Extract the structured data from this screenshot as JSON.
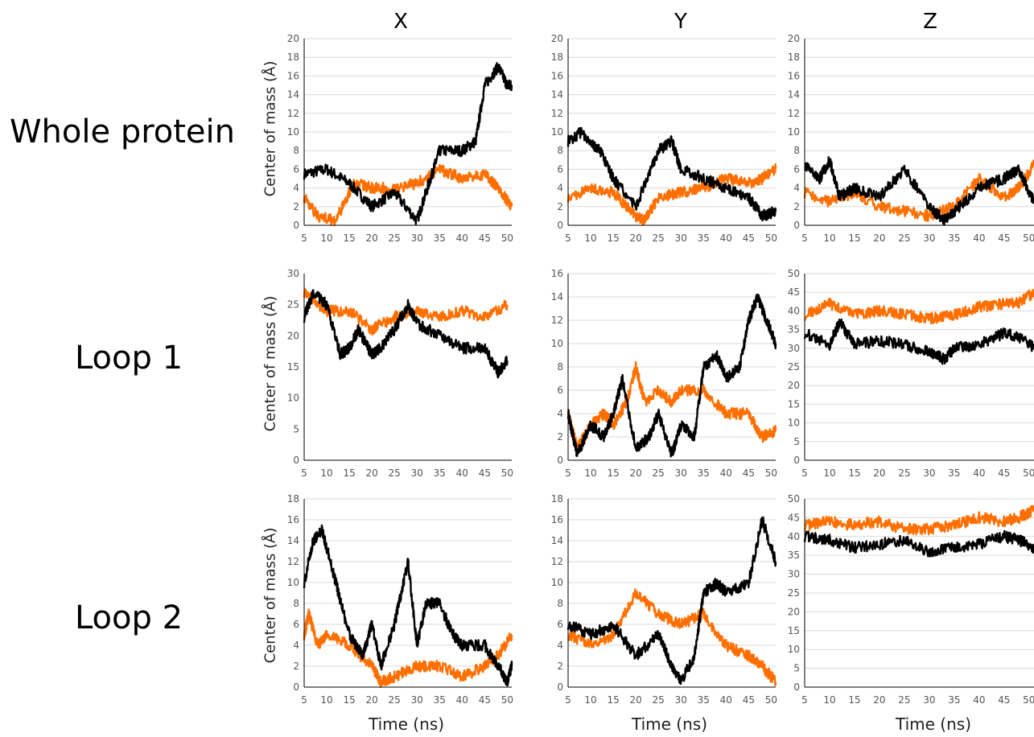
{
  "column_titles": [
    "X",
    "Y",
    "Z"
  ],
  "row_labels": [
    "Whole protein",
    "Loop 1",
    "Loop 2"
  ],
  "ylabel": "Center of mass (Å)",
  "xlabel": "Time (ns)",
  "colors": {
    "black_series": "#000000",
    "orange_series": "#ff6f00",
    "grid": "#d9d9d9",
    "axis": "#000000"
  },
  "chart_data": [
    {
      "type": "line",
      "row": "Whole protein",
      "column": "X",
      "xlim": [
        5,
        51
      ],
      "ylim": [
        0,
        20
      ],
      "xticks": [
        5,
        10,
        15,
        20,
        25,
        30,
        35,
        40,
        45,
        50
      ],
      "yticks": [
        0,
        2,
        4,
        6,
        8,
        10,
        12,
        14,
        16,
        18,
        20
      ],
      "grid": "horizontal",
      "series": [
        {
          "color": "#000000",
          "x": [
            5,
            10,
            15,
            20,
            25,
            30,
            33,
            35,
            40,
            43,
            45,
            48,
            50,
            51
          ],
          "y": [
            5.5,
            6,
            4.5,
            2,
            3.5,
            0.5,
            5,
            8,
            8,
            9,
            15,
            17,
            15,
            15
          ]
        },
        {
          "color": "#ff6f00",
          "x": [
            5,
            8,
            12,
            16,
            20,
            25,
            30,
            35,
            40,
            45,
            48,
            51
          ],
          "y": [
            3,
            1,
            0.5,
            4.5,
            4,
            4,
            4.5,
            6,
            5,
            5.5,
            4,
            2
          ]
        }
      ]
    },
    {
      "type": "line",
      "row": "Whole protein",
      "column": "Y",
      "xlim": [
        5,
        51
      ],
      "ylim": [
        0,
        20
      ],
      "xticks": [
        5,
        10,
        15,
        20,
        25,
        30,
        35,
        40,
        45,
        50
      ],
      "yticks": [
        0,
        2,
        4,
        6,
        8,
        10,
        12,
        14,
        16,
        18,
        20
      ],
      "grid": "horizontal",
      "series": [
        {
          "color": "#000000",
          "x": [
            5,
            8,
            12,
            15,
            20,
            25,
            28,
            30,
            35,
            40,
            45,
            48,
            51
          ],
          "y": [
            9,
            10,
            8,
            5,
            2,
            8,
            9,
            6,
            5,
            4,
            3,
            1,
            1.5
          ]
        },
        {
          "color": "#ff6f00",
          "x": [
            5,
            10,
            15,
            20,
            22,
            25,
            30,
            35,
            40,
            45,
            48,
            51
          ],
          "y": [
            3,
            4,
            3.5,
            1,
            0.5,
            3,
            3.5,
            4,
            5,
            4.5,
            5,
            6
          ]
        }
      ]
    },
    {
      "type": "line",
      "row": "Whole protein",
      "column": "Z",
      "xlim": [
        5,
        51
      ],
      "ylim": [
        0,
        20
      ],
      "xticks": [
        5,
        10,
        15,
        20,
        25,
        30,
        35,
        40,
        45,
        50
      ],
      "yticks": [
        0,
        2,
        4,
        6,
        8,
        10,
        12,
        14,
        16,
        18,
        20
      ],
      "grid": "horizontal",
      "series": [
        {
          "color": "#000000",
          "x": [
            5,
            8,
            10,
            12,
            15,
            20,
            25,
            30,
            33,
            35,
            40,
            45,
            48,
            51
          ],
          "y": [
            6.5,
            5,
            7,
            3,
            4,
            3,
            6,
            2,
            0.5,
            1.5,
            4,
            5,
            6,
            2.5
          ]
        },
        {
          "color": "#ff6f00",
          "x": [
            5,
            10,
            15,
            20,
            25,
            30,
            35,
            40,
            45,
            48,
            51
          ],
          "y": [
            3.5,
            2.5,
            3.5,
            2,
            1.5,
            1,
            2,
            5,
            3,
            4,
            6.5
          ]
        }
      ]
    },
    {
      "type": "line",
      "row": "Loop 1",
      "column": "X",
      "xlim": [
        5,
        51
      ],
      "ylim": [
        0,
        30
      ],
      "xticks": [
        5,
        10,
        15,
        20,
        25,
        30,
        35,
        40,
        45,
        50
      ],
      "yticks": [
        0,
        5,
        10,
        15,
        20,
        25,
        30
      ],
      "grid": "none",
      "series": [
        {
          "color": "#000000",
          "x": [
            5,
            7,
            10,
            13,
            15,
            17,
            20,
            22,
            25,
            28,
            30,
            35,
            40,
            45,
            48,
            50
          ],
          "y": [
            23,
            27,
            25,
            17,
            18,
            21,
            17,
            18,
            21,
            25,
            22,
            20,
            18,
            18,
            14,
            16
          ]
        },
        {
          "color": "#ff6f00",
          "x": [
            5,
            10,
            15,
            20,
            25,
            30,
            35,
            40,
            45,
            50
          ],
          "y": [
            27,
            24,
            24,
            21,
            23,
            24,
            23,
            24,
            23,
            25
          ]
        }
      ]
    },
    {
      "type": "line",
      "row": "Loop 1",
      "column": "Y",
      "xlim": [
        5,
        51
      ],
      "ylim": [
        0,
        16
      ],
      "xticks": [
        5,
        10,
        15,
        20,
        25,
        30,
        35,
        40,
        45,
        50
      ],
      "yticks": [
        0,
        2,
        4,
        6,
        8,
        10,
        12,
        14,
        16
      ],
      "grid": "horizontal",
      "series": [
        {
          "color": "#000000",
          "x": [
            5,
            7,
            10,
            13,
            15,
            17,
            20,
            23,
            25,
            28,
            30,
            33,
            35,
            38,
            40,
            43,
            45,
            47,
            49,
            51
          ],
          "y": [
            4,
            0.5,
            3,
            2,
            4,
            7,
            1,
            2,
            4,
            0.5,
            3,
            2,
            8,
            9,
            7,
            8,
            12,
            14,
            12,
            10
          ]
        },
        {
          "color": "#ff6f00",
          "x": [
            5,
            7,
            10,
            13,
            15,
            18,
            20,
            22,
            25,
            28,
            30,
            35,
            40,
            45,
            48,
            51
          ],
          "y": [
            4,
            1,
            3,
            4,
            3,
            5,
            8,
            5,
            6,
            5,
            6,
            6,
            4,
            4,
            2,
            2.5
          ]
        }
      ]
    },
    {
      "type": "line",
      "row": "Loop 1",
      "column": "Z",
      "xlim": [
        5,
        51
      ],
      "ylim": [
        0,
        50
      ],
      "xticks": [
        5,
        10,
        15,
        20,
        25,
        30,
        35,
        40,
        45,
        50
      ],
      "yticks": [
        0,
        5,
        10,
        15,
        20,
        25,
        30,
        35,
        40,
        45,
        50
      ],
      "grid": "horizontal",
      "series": [
        {
          "color": "#000000",
          "x": [
            5,
            10,
            12,
            15,
            20,
            25,
            30,
            33,
            35,
            40,
            45,
            48,
            51
          ],
          "y": [
            34,
            31,
            37,
            31,
            32,
            31,
            29,
            27,
            30,
            31,
            34,
            33,
            30
          ]
        },
        {
          "color": "#ff6f00",
          "x": [
            5,
            10,
            15,
            20,
            25,
            30,
            35,
            40,
            45,
            48,
            51
          ],
          "y": [
            39,
            42,
            39,
            40,
            39,
            38,
            39,
            41,
            42,
            42,
            45
          ]
        }
      ]
    },
    {
      "type": "line",
      "row": "Loop 2",
      "column": "X",
      "xlim": [
        5,
        51
      ],
      "ylim": [
        0,
        18
      ],
      "xticks": [
        5,
        10,
        15,
        20,
        25,
        30,
        35,
        40,
        45,
        50
      ],
      "yticks": [
        0,
        2,
        4,
        6,
        8,
        10,
        12,
        14,
        16,
        18
      ],
      "grid": "horizontal",
      "series": [
        {
          "color": "#000000",
          "x": [
            5,
            7,
            9,
            12,
            15,
            18,
            20,
            22,
            25,
            28,
            30,
            32,
            35,
            38,
            40,
            45,
            48,
            50,
            51
          ],
          "y": [
            10,
            14,
            15,
            10,
            5,
            3,
            6,
            2,
            6,
            12,
            4,
            8,
            8,
            5,
            4,
            4,
            2,
            0.5,
            2
          ]
        },
        {
          "color": "#ff6f00",
          "x": [
            5,
            6,
            8,
            10,
            15,
            20,
            22,
            25,
            30,
            35,
            40,
            45,
            48,
            51
          ],
          "y": [
            5,
            7,
            4,
            5,
            4,
            2,
            0.5,
            1,
            2,
            2,
            1,
            2,
            3,
            5
          ]
        }
      ]
    },
    {
      "type": "line",
      "row": "Loop 2",
      "column": "Y",
      "xlim": [
        5,
        51
      ],
      "ylim": [
        0,
        18
      ],
      "xticks": [
        5,
        10,
        15,
        20,
        25,
        30,
        35,
        40,
        45,
        50
      ],
      "yticks": [
        0,
        2,
        4,
        6,
        8,
        10,
        12,
        14,
        16,
        18
      ],
      "grid": "horizontal",
      "series": [
        {
          "color": "#000000",
          "x": [
            5,
            10,
            15,
            20,
            25,
            28,
            30,
            33,
            35,
            38,
            40,
            45,
            48,
            51
          ],
          "y": [
            6,
            5,
            6,
            3,
            5,
            2,
            0.5,
            3,
            9,
            10,
            9,
            10,
            16,
            12
          ]
        },
        {
          "color": "#ff6f00",
          "x": [
            5,
            10,
            15,
            20,
            25,
            30,
            35,
            40,
            45,
            48,
            51
          ],
          "y": [
            5,
            4,
            5,
            9,
            7,
            6,
            7,
            4,
            3,
            2,
            0.5
          ]
        }
      ]
    },
    {
      "type": "line",
      "row": "Loop 2",
      "column": "Z",
      "xlim": [
        5,
        51
      ],
      "ylim": [
        0,
        50
      ],
      "xticks": [
        5,
        10,
        15,
        20,
        25,
        30,
        35,
        40,
        45,
        50
      ],
      "yticks": [
        0,
        5,
        10,
        15,
        20,
        25,
        30,
        35,
        40,
        45,
        50
      ],
      "grid": "horizontal",
      "series": [
        {
          "color": "#000000",
          "x": [
            5,
            10,
            15,
            20,
            25,
            30,
            35,
            40,
            45,
            48,
            51
          ],
          "y": [
            40,
            39,
            37,
            38,
            39,
            36,
            37,
            38,
            40,
            39,
            37
          ]
        },
        {
          "color": "#ff6f00",
          "x": [
            5,
            10,
            15,
            20,
            25,
            30,
            35,
            40,
            45,
            48,
            51
          ],
          "y": [
            43,
            44,
            43,
            44,
            42,
            42,
            43,
            45,
            44,
            45,
            47
          ]
        }
      ]
    }
  ]
}
